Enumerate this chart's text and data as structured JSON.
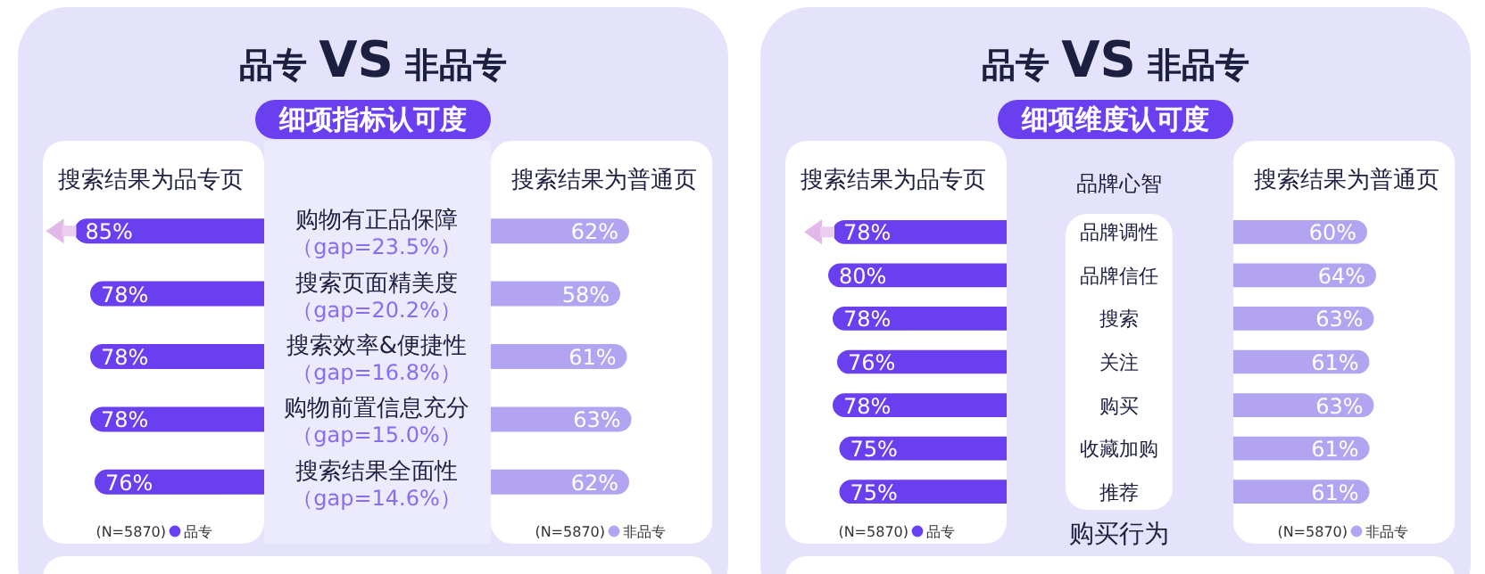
{
  "chart_data": [
    {
      "type": "bar",
      "orientation": "horizontal",
      "title": "品专 VS 非品专",
      "subtitle": "细项指标认可度",
      "legend": "bottom",
      "tick_labels": "y",
      "xlim": [
        100,
        0
      ],
      "categories": [
        "购物有正品保障",
        "搜索页面精美度",
        "搜索效率&便捷性",
        "购物前置信息充分",
        "搜索结果全面性"
      ],
      "series": [
        {
          "name": "品专",
          "color": "#6a3ff0",
          "values": [
            85,
            78,
            78,
            78,
            76
          ],
          "value_labels": [
            "85%",
            "78%",
            "78%",
            "78%",
            "76%"
          ]
        }
      ],
      "annotations": [
        "搜索结果为品专页",
        "(N=5870)",
        "（gap=23.5%）",
        "（gap=20.2%）",
        "（gap=16.8%）",
        "（gap=15.0%）",
        "（gap=14.6%）"
      ]
    },
    {
      "type": "bar",
      "orientation": "horizontal",
      "legend": "bottom",
      "tick_labels": false,
      "xlim": [
        0,
        100
      ],
      "categories": [
        null,
        null,
        null,
        null,
        null
      ],
      "series": [
        {
          "name": "非品专",
          "color": "#b3a4f2",
          "values": [
            62,
            58,
            61,
            63,
            62
          ],
          "value_labels": [
            "62%",
            "58%",
            "61%",
            "63%",
            "62%"
          ]
        }
      ],
      "annotations": [
        "搜索结果为普通页",
        "(N=5870)"
      ]
    },
    {
      "type": "bar",
      "orientation": "horizontal",
      "title": "品专 VS 非品专",
      "subtitle": "细项维度认可度",
      "legend": "bottom",
      "tick_labels": "y",
      "xlim": [
        100,
        0
      ],
      "categories": [
        "品牌调性",
        "品牌信任",
        "搜索",
        "关注",
        "购买",
        "收藏加购",
        "推荐"
      ],
      "series": [
        {
          "name": "品专",
          "color": "#6a3ff0",
          "values": [
            78,
            80,
            78,
            76,
            78,
            75,
            75
          ],
          "value_labels": [
            "78%",
            "80%",
            "78%",
            "76%",
            "78%",
            "75%",
            "75%"
          ]
        }
      ],
      "annotations": [
        "搜索结果为品专页",
        "(N=5870)",
        "品牌心智",
        "购买行为"
      ]
    },
    {
      "type": "bar",
      "orientation": "horizontal",
      "legend": "bottom",
      "tick_labels": false,
      "xlim": [
        0,
        100
      ],
      "categories": [
        null,
        null,
        null,
        null,
        null,
        null,
        null
      ],
      "series": [
        {
          "name": "非品专",
          "color": "#b3a4f2",
          "values": [
            60,
            64,
            63,
            61,
            63,
            61,
            61
          ],
          "value_labels": [
            "60%",
            "64%",
            "63%",
            "61%",
            "63%",
            "61%",
            "61%"
          ]
        }
      ],
      "annotations": [
        "搜索结果为普通页",
        "(N=5870)"
      ]
    }
  ]
}
